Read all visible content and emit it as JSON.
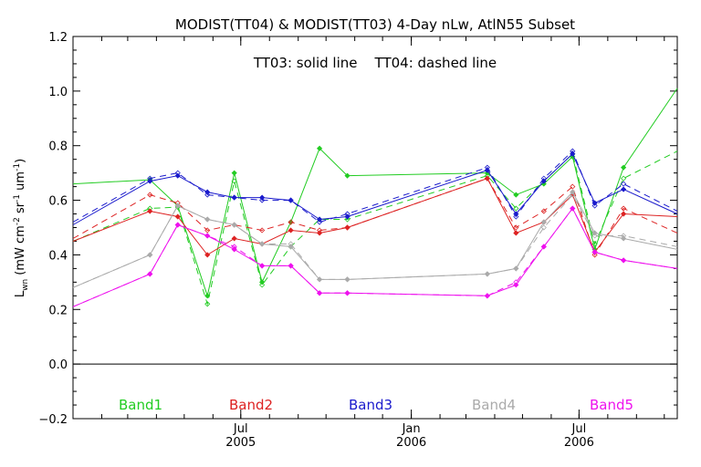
{
  "chart_data": {
    "type": "line",
    "title": "MODIST(TT04) & MODIST(TT03) 4-Day nLw, AtlN55 Subset",
    "annotation": "TT03: solid line    TT04: dashed line",
    "ylabel": "L_wn (mW cm^-2 sr^-1 um^-1)",
    "ylabel_parts": {
      "main": "L",
      "sub": "wn",
      "unit_open": " (mW cm",
      "e1": "-2",
      "sr": " sr",
      "e2": "-1",
      "um": " um",
      "e3": "-1",
      "unit_close": ")"
    },
    "ylim": [
      -0.2,
      1.2
    ],
    "yticks": [
      -0.2,
      0.0,
      0.2,
      0.4,
      0.6,
      0.8,
      1.0,
      1.2
    ],
    "ytick_labels": [
      "−0.2",
      "0.0",
      "0.2",
      "0.4",
      "0.6",
      "0.8",
      "1.0",
      "1.2"
    ],
    "xlim": [
      "2005-01-01",
      "2006-10-15"
    ],
    "xticks": [
      {
        "date": "2005-07-01",
        "month": "Jul",
        "year": "2005"
      },
      {
        "date": "2006-01-01",
        "month": "Jan",
        "year": "2006"
      },
      {
        "date": "2006-07-01",
        "month": "Jul",
        "year": "2006"
      }
    ],
    "zero_line": true,
    "grid": false,
    "legend_placement": "bottom, horizontal inside plot",
    "series": [
      {
        "name": "Band1",
        "color": "#22cc22",
        "solid": {
          "x": [
            "2005-01-01",
            "2005-03-25",
            "2005-04-24",
            "2005-05-26",
            "2005-06-24",
            "2005-07-24",
            "2005-08-24",
            "2005-09-24",
            "2005-10-24",
            "2006-03-24",
            "2006-04-24",
            "2006-05-24",
            "2006-06-24",
            "2006-07-18",
            "2006-08-18",
            "2006-10-15"
          ],
          "y": [
            0.66,
            0.675,
            0.58,
            0.25,
            0.7,
            0.3,
            0.52,
            0.79,
            0.69,
            0.7,
            0.62,
            0.66,
            0.76,
            0.42,
            0.72,
            1.01
          ]
        },
        "dashed": {
          "x": [
            "2005-01-01",
            "2005-03-25",
            "2005-04-24",
            "2005-05-26",
            "2005-06-24",
            "2005-07-24",
            "2005-08-24",
            "2005-09-24",
            "2005-10-24",
            "2006-03-24",
            "2006-04-24",
            "2006-05-24",
            "2006-06-24",
            "2006-07-18",
            "2006-08-18",
            "2006-10-15"
          ],
          "y": [
            0.45,
            0.57,
            0.575,
            0.22,
            0.67,
            0.29,
            0.43,
            0.53,
            0.53,
            0.69,
            0.57,
            0.67,
            0.77,
            0.44,
            0.68,
            0.78
          ]
        }
      },
      {
        "name": "Band2",
        "color": "#dd2222",
        "solid": {
          "x": [
            "2005-01-01",
            "2005-03-25",
            "2005-04-24",
            "2005-05-26",
            "2005-06-24",
            "2005-07-24",
            "2005-08-24",
            "2005-09-24",
            "2005-10-24",
            "2006-03-24",
            "2006-04-24",
            "2006-05-24",
            "2006-06-24",
            "2006-07-18",
            "2006-08-18",
            "2006-10-15"
          ],
          "y": [
            0.45,
            0.56,
            0.54,
            0.4,
            0.46,
            0.44,
            0.49,
            0.48,
            0.5,
            0.68,
            0.48,
            0.52,
            0.62,
            0.41,
            0.55,
            0.54
          ]
        },
        "dashed": {
          "x": [
            "2005-01-01",
            "2005-03-25",
            "2005-04-24",
            "2005-05-26",
            "2005-06-24",
            "2005-07-24",
            "2005-08-24",
            "2005-09-24",
            "2005-10-24",
            "2006-03-24",
            "2006-04-24",
            "2006-05-24",
            "2006-06-24",
            "2006-07-18",
            "2006-08-18",
            "2006-10-15"
          ],
          "y": [
            0.46,
            0.62,
            0.59,
            0.49,
            0.51,
            0.49,
            0.52,
            0.49,
            0.5,
            0.68,
            0.5,
            0.56,
            0.65,
            0.4,
            0.57,
            0.48
          ]
        }
      },
      {
        "name": "Band3",
        "color": "#1a1acc",
        "solid": {
          "x": [
            "2005-01-01",
            "2005-03-25",
            "2005-04-24",
            "2005-05-26",
            "2005-06-24",
            "2005-07-24",
            "2005-08-24",
            "2005-09-24",
            "2005-10-24",
            "2006-03-24",
            "2006-04-24",
            "2006-05-24",
            "2006-06-24",
            "2006-07-18",
            "2006-08-18",
            "2006-10-15"
          ],
          "y": [
            0.51,
            0.67,
            0.69,
            0.63,
            0.61,
            0.61,
            0.6,
            0.53,
            0.54,
            0.71,
            0.55,
            0.67,
            0.77,
            0.59,
            0.64,
            0.55
          ]
        },
        "dashed": {
          "x": [
            "2005-01-01",
            "2005-03-25",
            "2005-04-24",
            "2005-05-26",
            "2005-06-24",
            "2005-07-24",
            "2005-08-24",
            "2005-09-24",
            "2005-10-24",
            "2006-03-24",
            "2006-04-24",
            "2006-05-24",
            "2006-06-24",
            "2006-07-18",
            "2006-08-18",
            "2006-10-15"
          ],
          "y": [
            0.52,
            0.68,
            0.7,
            0.62,
            0.61,
            0.6,
            0.6,
            0.52,
            0.55,
            0.72,
            0.54,
            0.68,
            0.78,
            0.58,
            0.66,
            0.56
          ]
        }
      },
      {
        "name": "Band4",
        "color": "#aaaaaa",
        "solid": {
          "x": [
            "2005-01-01",
            "2005-03-25",
            "2005-04-24",
            "2005-05-26",
            "2005-06-24",
            "2005-07-24",
            "2005-08-24",
            "2005-09-24",
            "2005-10-24",
            "2006-03-24",
            "2006-04-24",
            "2006-05-24",
            "2006-06-24",
            "2006-07-18",
            "2006-08-18",
            "2006-10-15"
          ],
          "y": [
            0.28,
            0.4,
            0.58,
            0.53,
            0.51,
            0.44,
            0.43,
            0.31,
            0.31,
            0.33,
            0.35,
            0.52,
            0.63,
            0.48,
            0.46,
            0.42
          ]
        },
        "dashed": {
          "x": [
            "2005-01-01",
            "2005-03-25",
            "2005-04-24",
            "2005-05-26",
            "2005-06-24",
            "2005-07-24",
            "2005-08-24",
            "2005-09-24",
            "2005-10-24",
            "2006-03-24",
            "2006-04-24",
            "2006-05-24",
            "2006-06-24",
            "2006-07-18",
            "2006-08-18",
            "2006-10-15"
          ],
          "y": [
            0.28,
            0.4,
            0.58,
            0.53,
            0.51,
            0.44,
            0.44,
            0.31,
            0.31,
            0.33,
            0.35,
            0.5,
            0.62,
            0.47,
            0.47,
            0.43
          ]
        }
      },
      {
        "name": "Band5",
        "color": "#ee11ee",
        "solid": {
          "x": [
            "2005-01-01",
            "2005-03-25",
            "2005-04-24",
            "2005-05-26",
            "2005-06-24",
            "2005-07-24",
            "2005-08-24",
            "2005-09-24",
            "2005-10-24",
            "2006-03-24",
            "2006-04-24",
            "2006-05-24",
            "2006-06-24",
            "2006-07-18",
            "2006-08-18",
            "2006-10-15"
          ],
          "y": [
            0.21,
            0.33,
            0.51,
            0.47,
            0.42,
            0.36,
            0.36,
            0.26,
            0.26,
            0.25,
            0.29,
            0.43,
            0.57,
            0.41,
            0.38,
            0.35
          ]
        },
        "dashed": {
          "x": [
            "2005-01-01",
            "2005-03-25",
            "2005-04-24",
            "2005-05-26",
            "2005-06-24",
            "2005-07-24",
            "2005-08-24",
            "2005-09-24",
            "2005-10-24",
            "2006-03-24",
            "2006-04-24",
            "2006-05-24",
            "2006-06-24",
            "2006-07-18",
            "2006-08-18",
            "2006-10-15"
          ],
          "y": [
            0.21,
            0.33,
            0.51,
            0.47,
            0.43,
            0.36,
            0.36,
            0.26,
            0.26,
            0.25,
            0.3,
            0.43,
            0.57,
            0.41,
            0.38,
            0.35
          ]
        }
      }
    ]
  }
}
